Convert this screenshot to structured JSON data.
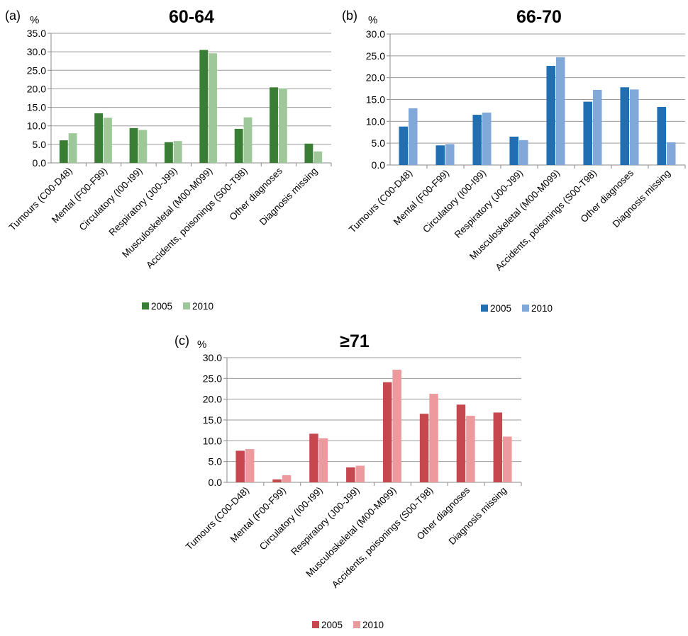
{
  "categories": [
    "Tumours (C00-D48)",
    "Mental (F00-F99)",
    "Circulatory (I00-I99)",
    "Respiratory (J00-J99)",
    "Musculoskeletal (M00-M099)",
    "Accidents, poisonings (S00-T98)",
    "Other diagnoses",
    "Diagnosis missing"
  ],
  "chart_data": [
    {
      "type": "bar",
      "panel": "(a)",
      "title": "60-64",
      "ylabel": "%",
      "ylim": [
        0,
        35
      ],
      "yticks": [
        "0.0",
        "5.0",
        "10.0",
        "15.0",
        "20.0",
        "25.0",
        "30.0",
        "35.0"
      ],
      "grid": true,
      "legend_position": "bottom",
      "series": [
        {
          "name": "2005",
          "color": "#3a7d34",
          "values": [
            6.1,
            13.4,
            9.4,
            5.6,
            30.5,
            9.2,
            20.4,
            5.2
          ]
        },
        {
          "name": "2010",
          "color": "#9fc89a",
          "values": [
            8.0,
            12.2,
            8.9,
            5.9,
            29.6,
            12.3,
            20.1,
            3.1
          ]
        }
      ]
    },
    {
      "type": "bar",
      "panel": "(b)",
      "title": "66-70",
      "ylabel": "%",
      "ylim": [
        0,
        30
      ],
      "yticks": [
        "0.0",
        "5.0",
        "10.0",
        "15.0",
        "20.0",
        "25.0",
        "30.0"
      ],
      "grid": true,
      "legend_position": "bottom",
      "series": [
        {
          "name": "2005",
          "color": "#1f6fb2",
          "values": [
            8.8,
            4.5,
            11.5,
            6.5,
            22.7,
            14.5,
            17.8,
            13.3
          ]
        },
        {
          "name": "2010",
          "color": "#80a9da",
          "values": [
            13.0,
            4.8,
            12.0,
            5.7,
            24.7,
            17.2,
            17.3,
            5.2
          ]
        }
      ]
    },
    {
      "type": "bar",
      "panel": "(c)",
      "title": "≥71",
      "ylabel": "%",
      "ylim": [
        0,
        30
      ],
      "yticks": [
        "0.0",
        "5.0",
        "10.0",
        "15.0",
        "20.0",
        "25.0",
        "30.0"
      ],
      "grid": true,
      "legend_position": "bottom",
      "series": [
        {
          "name": "2005",
          "color": "#c6474d",
          "values": [
            7.6,
            0.7,
            11.7,
            3.6,
            24.1,
            16.5,
            18.7,
            16.8
          ]
        },
        {
          "name": "2010",
          "color": "#ec9a9e",
          "values": [
            8.0,
            1.7,
            10.6,
            4.0,
            27.1,
            21.3,
            16.0,
            11.0
          ]
        }
      ]
    }
  ]
}
